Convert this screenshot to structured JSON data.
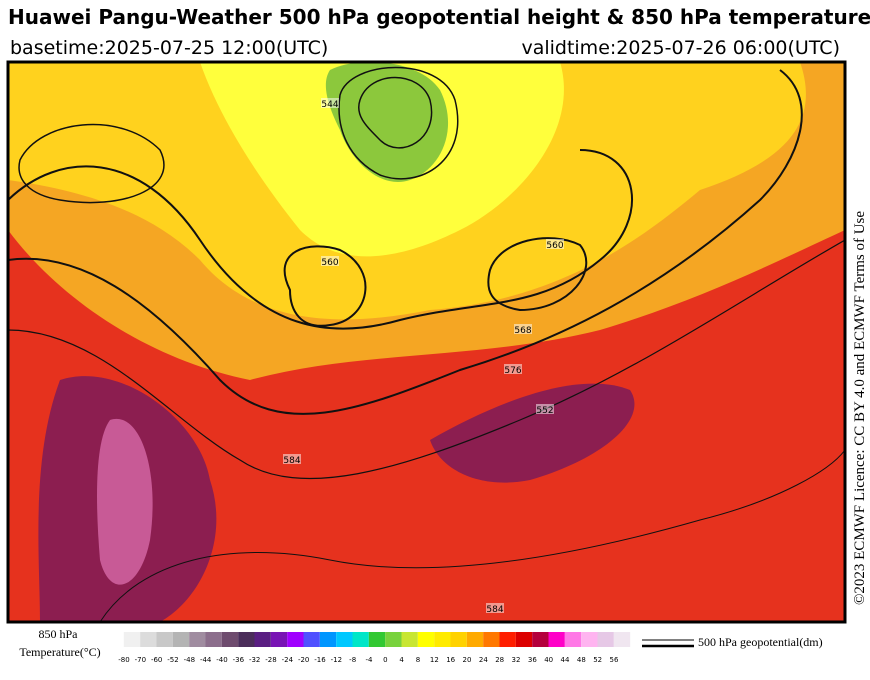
{
  "header": {
    "title": "Huawei Pangu-Weather 500 hPa geopotential height & 850 hPa temperature",
    "basetime": "basetime:2025-07-25 12:00(UTC)",
    "validtime": "validtime:2025-07-26 06:00(UTC)"
  },
  "licence": "©2023 ECMWF Licence: CC BY 4.0 and ECMWF Terms of Use",
  "map": {
    "contour_labels": [
      "544",
      "552",
      "560",
      "560",
      "568",
      "576",
      "584",
      "584"
    ]
  },
  "legend": {
    "field_title": "850 hPa",
    "field_unit": "Temperature(°C)",
    "line_label": "500 hPa geopotential(dm)",
    "colorbar": {
      "ticks": [
        -80,
        -70,
        -60,
        -52,
        -48,
        -44,
        -40,
        -36,
        -32,
        -28,
        -24,
        -20,
        -16,
        -12,
        -8,
        -4,
        0,
        4,
        8,
        12,
        16,
        20,
        24,
        28,
        32,
        36,
        40,
        44,
        48,
        52,
        56
      ],
      "colors": [
        "#f0f0f0",
        "#dcdcdc",
        "#c8c8c8",
        "#b4b4b4",
        "#a08ca0",
        "#8c6e8c",
        "#6e4b6e",
        "#4b2d5a",
        "#5a1e82",
        "#7814b4",
        "#a000ff",
        "#5050ff",
        "#0096ff",
        "#00c8ff",
        "#00e6c8",
        "#32c832",
        "#78d23c",
        "#c8e632",
        "#ffff00",
        "#ffeb00",
        "#ffd200",
        "#ffaa00",
        "#ff7800",
        "#ff1e00",
        "#dc0000",
        "#b4003c",
        "#ff00c8",
        "#ff78e6",
        "#ffb4f0",
        "#e6c8e6",
        "#f0e6f0"
      ]
    }
  }
}
